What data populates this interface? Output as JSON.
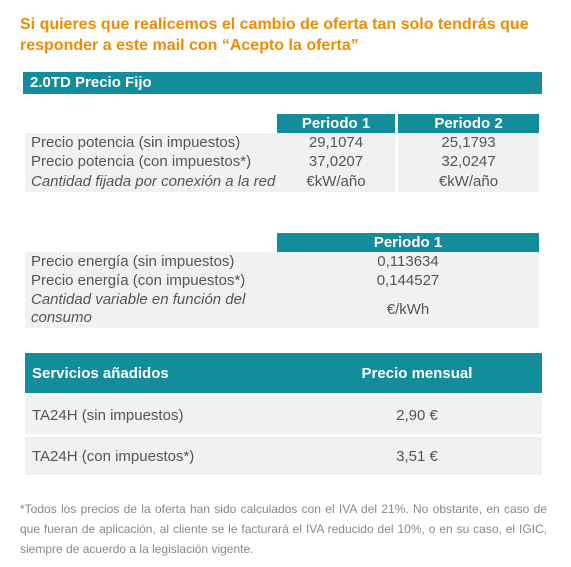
{
  "intro": "Si quieres que realicemos el cambio de oferta tan solo tendrás que responder a este mail con “Acepto la oferta”",
  "section_title": "2.0TD Precio Fijo",
  "potencia": {
    "headers": [
      "Periodo 1",
      "Periodo 2"
    ],
    "rows": [
      {
        "label": "Precio potencia (sin impuestos)",
        "p1": "29,1074",
        "p2": "25,1793"
      },
      {
        "label": "Precio potencia (con impuestos*)",
        "p1": "37,0207",
        "p2": "32,0247"
      },
      {
        "label": "Cantidad fijada por conexión a la red",
        "p1": "€kW/año",
        "p2": "€kW/año"
      }
    ]
  },
  "energia": {
    "header": "Periodo 1",
    "rows": [
      {
        "label": "Precio energía (sin impuestos)",
        "p1": "0,113634"
      },
      {
        "label": "Precio energía (con impuestos*)",
        "p1": "0,144527"
      },
      {
        "label": "Cantidad variable en función del consumo",
        "p1": "€/kWh"
      }
    ]
  },
  "servicios": {
    "header_label": "Servicios añadidos",
    "header_price": "Precio mensual",
    "rows": [
      {
        "label": "TA24H (sin impuestos)",
        "price": "2,90 €"
      },
      {
        "label": "TA24H (con impuestos*)",
        "price": "3,51 €"
      }
    ]
  },
  "footnote": "*Todos los precios de la oferta han sido calculados con el IVA del 21%. No obstante, en caso de que fueran de aplicación, al cliente se le facturará el IVA reducido del 10%, o en su caso, el IGIC, siempre de acuerdo a la legislación vigente.",
  "colors": {
    "accent": "#f08c00",
    "header": "#138c9b",
    "row_bg": "#f1f1f1"
  }
}
